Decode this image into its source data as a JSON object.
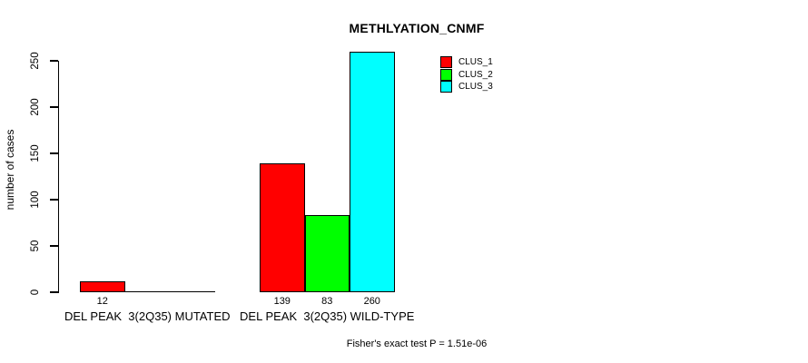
{
  "chart_data": {
    "type": "bar",
    "title": "METHLYATION_CNMF",
    "ylabel": "number of cases",
    "xlabel": "",
    "ylim": [
      0,
      250
    ],
    "yticks": [
      0,
      50,
      100,
      150,
      200,
      250
    ],
    "grid": false,
    "legend_position": "top-right",
    "series": [
      {
        "name": "CLUS_1",
        "color": "#ff0000"
      },
      {
        "name": "CLUS_2",
        "color": "#00ff00"
      },
      {
        "name": "CLUS_3",
        "color": "#00ffff"
      }
    ],
    "categories": [
      "DEL PEAK  3(2Q35) MUTATED",
      "DEL PEAK  3(2Q35) WILD-TYPE"
    ],
    "groups": [
      {
        "label": "DEL PEAK  3(2Q35) MUTATED",
        "values": [
          12,
          0,
          0
        ]
      },
      {
        "label": "DEL PEAK  3(2Q35) WILD-TYPE",
        "values": [
          139,
          83,
          260
        ]
      }
    ],
    "bar_value_labels_shown": [
      "12",
      "139",
      "83",
      "260"
    ],
    "annotation": "Fisher's exact test P = 1.51e-06"
  }
}
